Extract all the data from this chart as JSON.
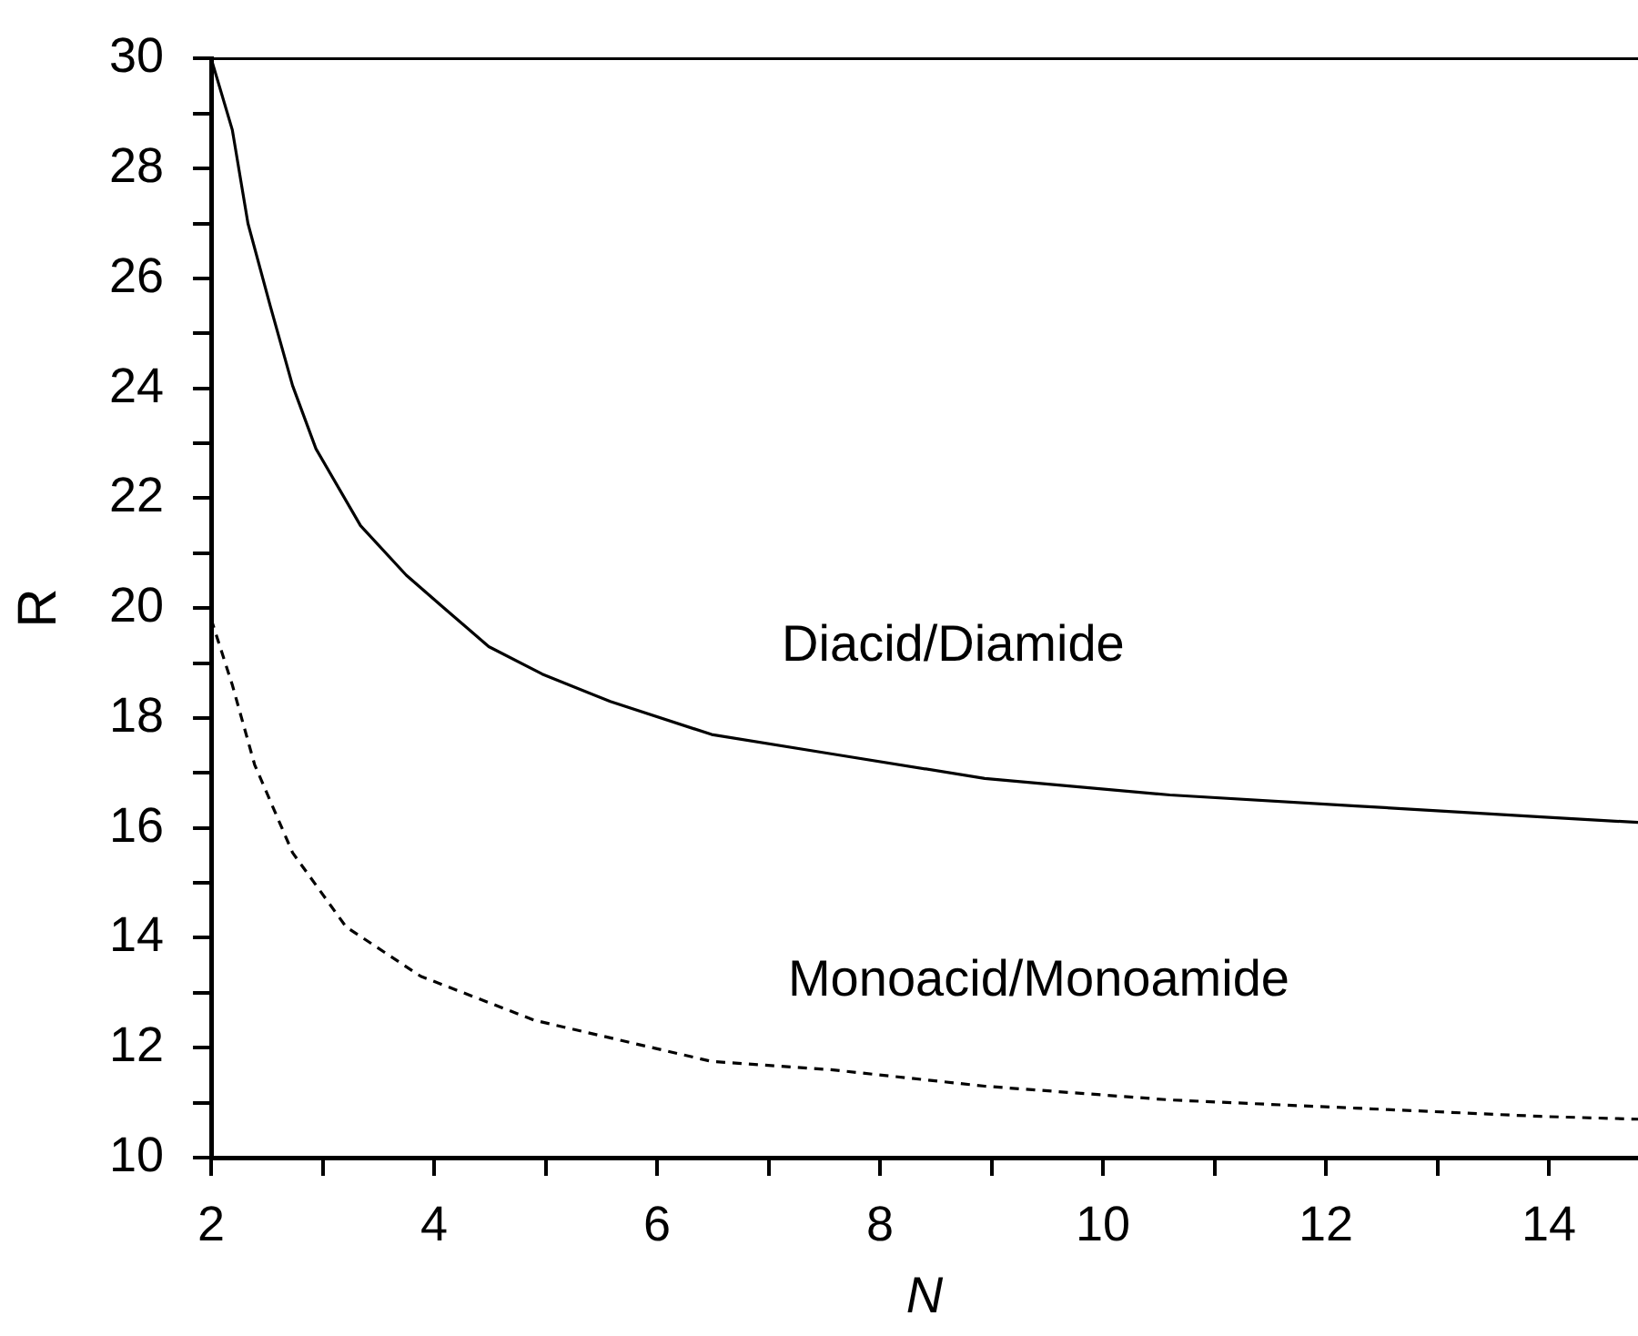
{
  "chart_data": {
    "type": "line",
    "xlabel": "N",
    "ylabel": "R",
    "xlim": [
      2,
      14.8
    ],
    "ylim": [
      10,
      30
    ],
    "xticks": [
      2,
      {
        "value": 3,
        "label": null
      },
      4,
      {
        "value": 5,
        "label": null
      },
      6,
      {
        "value": 7,
        "label": null
      },
      8,
      {
        "value": 9,
        "label": null
      },
      10,
      {
        "value": 11,
        "label": null
      },
      12,
      {
        "value": 13,
        "label": null
      },
      14
    ],
    "yticks": [
      10,
      {
        "value": 11,
        "label": null
      },
      12,
      {
        "value": 13,
        "label": null
      },
      14,
      {
        "value": 15,
        "label": null
      },
      16,
      {
        "value": 17,
        "label": null
      },
      18,
      {
        "value": 19,
        "label": null
      },
      20,
      {
        "value": 21,
        "label": null
      },
      22,
      {
        "value": 23,
        "label": null
      },
      24,
      {
        "value": 25,
        "label": null
      },
      26,
      {
        "value": 27,
        "label": null
      },
      28,
      {
        "value": 29,
        "label": null
      },
      30
    ],
    "grid": false,
    "legend": false,
    "marker": "none",
    "series": [
      {
        "color": "#000000",
        "line_style": "solid",
        "x": [
          2,
          2.19,
          2.33,
          2.53,
          2.73,
          2.94,
          3.34,
          3.75,
          4.09,
          4.49,
          4.97,
          5.58,
          6.49,
          7.56,
          8.94,
          10.6,
          12.27,
          13.93,
          14.8
        ],
        "values": [
          30,
          28.7,
          27,
          25.5,
          24.05,
          22.9,
          21.5,
          20.6,
          20,
          19.3,
          18.8,
          18.3,
          17.7,
          17.35,
          16.9,
          16.6,
          16.4,
          16.2,
          16.1
        ]
      },
      {
        "color": "#000000",
        "line_style": "dashed",
        "x": [
          2,
          2.19,
          2.39,
          2.73,
          3.21,
          3.88,
          4.9,
          6.49,
          7.56,
          8.94,
          10.6,
          12.27,
          13.93,
          14.8
        ],
        "values": [
          19.8,
          18.6,
          17.15,
          15.55,
          14.2,
          13.3,
          12.5,
          11.75,
          11.6,
          11.3,
          11.05,
          10.9,
          10.75,
          10.7
        ]
      }
    ],
    "annotations": [
      "Diacid/Diamide",
      "Monoacid/Monoamide"
    ]
  }
}
